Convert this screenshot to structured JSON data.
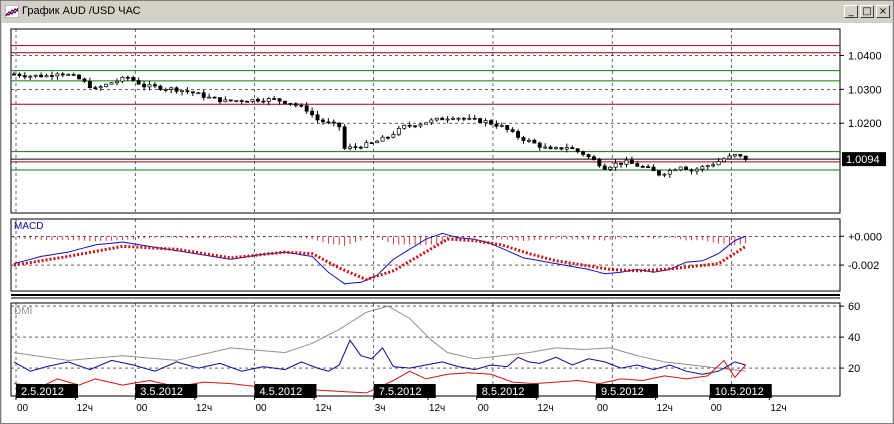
{
  "window": {
    "title": "График AUD /USD  ЧАС",
    "buttons": {
      "minimize": "_",
      "maximize": "□",
      "close": "×"
    }
  },
  "chart_data": [
    {
      "type": "candlestick",
      "panel": "price",
      "y_ticks": [
        "1.0400",
        "1.0300",
        "1.0200"
      ],
      "ylim": [
        0.9935,
        1.0478
      ],
      "current_price_label": "1.0094",
      "horizontal_levels": {
        "red": [
          1.0429,
          1.0408,
          1.0256,
          1.0086
        ],
        "green": [
          1.0355,
          1.0325,
          1.0116,
          1.0062
        ],
        "black": [
          1.0094
        ]
      },
      "close_path": [
        [
          0,
          1.0345
        ],
        [
          3,
          1.034
        ],
        [
          6,
          1.034
        ],
        [
          8,
          1.035
        ],
        [
          10,
          1.0342
        ],
        [
          12,
          1.033
        ],
        [
          15,
          1.03
        ],
        [
          18,
          1.032
        ],
        [
          21,
          1.0335
        ],
        [
          24,
          1.031
        ],
        [
          27,
          1.0305
        ],
        [
          30,
          1.03
        ],
        [
          33,
          1.029
        ],
        [
          36,
          1.0275
        ],
        [
          39,
          1.0265
        ],
        [
          42,
          1.0268
        ],
        [
          45,
          1.027
        ],
        [
          48,
          1.027
        ],
        [
          51,
          1.026
        ],
        [
          54,
          1.024
        ],
        [
          56,
          1.021
        ],
        [
          58,
          1.02
        ],
        [
          60,
          1.019
        ],
        [
          61,
          1.0125
        ],
        [
          63,
          1.013
        ],
        [
          66,
          1.014
        ],
        [
          69,
          1.016
        ],
        [
          72,
          1.019
        ],
        [
          75,
          1.02
        ],
        [
          78,
          1.021
        ],
        [
          81,
          1.022
        ],
        [
          84,
          1.021
        ],
        [
          87,
          1.0205
        ],
        [
          90,
          1.019
        ],
        [
          93,
          1.016
        ],
        [
          96,
          1.014
        ],
        [
          99,
          1.012
        ],
        [
          102,
          1.013
        ],
        [
          105,
          1.011
        ],
        [
          107,
          1.009
        ],
        [
          109,
          1.007
        ],
        [
          111,
          1.008
        ],
        [
          113,
          1.0085
        ],
        [
          115,
          1.0075
        ],
        [
          117,
          1.0065
        ],
        [
          119,
          1.005
        ],
        [
          121,
          1.006
        ],
        [
          123,
          1.0075
        ],
        [
          125,
          1.006
        ],
        [
          127,
          1.007
        ],
        [
          129,
          1.008
        ],
        [
          131,
          1.0095
        ],
        [
          133,
          1.0105
        ],
        [
          135,
          1.0095
        ]
      ]
    },
    {
      "type": "line",
      "panel": "MACD",
      "title": "MACD",
      "y_ticks": [
        "+0.000",
        "-0.002"
      ],
      "ylim": [
        -0.0038,
        0.0012
      ],
      "series": [
        {
          "color": "#1010c0",
          "points": [
            [
              0,
              -0.0019
            ],
            [
              5,
              -0.0014
            ],
            [
              10,
              -0.0011
            ],
            [
              15,
              -0.0006
            ],
            [
              20,
              -0.0004
            ],
            [
              25,
              -0.0007
            ],
            [
              30,
              -0.001
            ],
            [
              35,
              -0.0013
            ],
            [
              40,
              -0.0016
            ],
            [
              45,
              -0.0013
            ],
            [
              50,
              -0.0011
            ],
            [
              55,
              -0.0014
            ],
            [
              58,
              -0.0025
            ],
            [
              61,
              -0.0033
            ],
            [
              64,
              -0.0032
            ],
            [
              67,
              -0.0027
            ],
            [
              70,
              -0.0016
            ],
            [
              73,
              -0.0009
            ],
            [
              76,
              -0.0002
            ],
            [
              79,
              0.0002
            ],
            [
              82,
              -0.0001
            ],
            [
              85,
              -0.0002
            ],
            [
              88,
              -0.0005
            ],
            [
              91,
              -0.001
            ],
            [
              94,
              -0.0015
            ],
            [
              97,
              -0.0017
            ],
            [
              100,
              -0.0019
            ],
            [
              103,
              -0.0021
            ],
            [
              106,
              -0.0023
            ],
            [
              109,
              -0.0026
            ],
            [
              112,
              -0.0025
            ],
            [
              115,
              -0.0023
            ],
            [
              118,
              -0.0025
            ],
            [
              121,
              -0.0023
            ],
            [
              124,
              -0.0018
            ],
            [
              127,
              -0.0017
            ],
            [
              130,
              -0.0012
            ],
            [
              133,
              -0.0003
            ],
            [
              135,
              0.0
            ]
          ]
        },
        {
          "color": "#cc1010",
          "style": "dotted",
          "points": [
            [
              0,
              -0.002
            ],
            [
              10,
              -0.0014
            ],
            [
              20,
              -0.0007
            ],
            [
              30,
              -0.0009
            ],
            [
              40,
              -0.0015
            ],
            [
              50,
              -0.0011
            ],
            [
              55,
              -0.0012
            ],
            [
              60,
              -0.0022
            ],
            [
              65,
              -0.003
            ],
            [
              70,
              -0.0024
            ],
            [
              75,
              -0.0013
            ],
            [
              80,
              -0.0002
            ],
            [
              85,
              -0.0003
            ],
            [
              90,
              -0.0006
            ],
            [
              95,
              -0.0012
            ],
            [
              100,
              -0.0017
            ],
            [
              105,
              -0.002
            ],
            [
              110,
              -0.0023
            ],
            [
              115,
              -0.0024
            ],
            [
              120,
              -0.0023
            ],
            [
              125,
              -0.0021
            ],
            [
              130,
              -0.0019
            ],
            [
              135,
              -0.0007
            ]
          ]
        }
      ]
    },
    {
      "type": "line",
      "panel": "DMI",
      "title": "DMI",
      "y_ticks": [
        "60",
        "40",
        "20"
      ],
      "ylim": [
        2,
        62
      ],
      "series": [
        {
          "color": "#909090",
          "points": [
            [
              0,
              30
            ],
            [
              10,
              25
            ],
            [
              20,
              28
            ],
            [
              30,
              25
            ],
            [
              40,
              33
            ],
            [
              50,
              30
            ],
            [
              55,
              36
            ],
            [
              60,
              45
            ],
            [
              65,
              56
            ],
            [
              69,
              60
            ],
            [
              73,
              52
            ],
            [
              77,
              38
            ],
            [
              80,
              30
            ],
            [
              85,
              26
            ],
            [
              90,
              28
            ],
            [
              95,
              30
            ],
            [
              100,
              33
            ],
            [
              105,
              32
            ],
            [
              110,
              33
            ],
            [
              115,
              28
            ],
            [
              120,
              24
            ],
            [
              125,
              22
            ],
            [
              130,
              20
            ],
            [
              135,
              18
            ]
          ]
        },
        {
          "color": "#0a0a9a",
          "points": [
            [
              0,
              24
            ],
            [
              3,
              18
            ],
            [
              6,
              21
            ],
            [
              10,
              24
            ],
            [
              14,
              19
            ],
            [
              18,
              25
            ],
            [
              22,
              22
            ],
            [
              26,
              18
            ],
            [
              30,
              24
            ],
            [
              34,
              20
            ],
            [
              38,
              23
            ],
            [
              42,
              18
            ],
            [
              46,
              21
            ],
            [
              50,
              19
            ],
            [
              53,
              24
            ],
            [
              56,
              20
            ],
            [
              58,
              18
            ],
            [
              60,
              22
            ],
            [
              62,
              38
            ],
            [
              64,
              28
            ],
            [
              66,
              26
            ],
            [
              68,
              33
            ],
            [
              70,
              21
            ],
            [
              73,
              20
            ],
            [
              76,
              22
            ],
            [
              79,
              24
            ],
            [
              82,
              21
            ],
            [
              85,
              19
            ],
            [
              88,
              22
            ],
            [
              91,
              21
            ],
            [
              93,
              27
            ],
            [
              95,
              24
            ],
            [
              97,
              23
            ],
            [
              100,
              27
            ],
            [
              103,
              22
            ],
            [
              106,
              26
            ],
            [
              109,
              24
            ],
            [
              112,
              20
            ],
            [
              115,
              22
            ],
            [
              118,
              19
            ],
            [
              121,
              22
            ],
            [
              124,
              18
            ],
            [
              127,
              16
            ],
            [
              130,
              18
            ],
            [
              133,
              24
            ],
            [
              135,
              22
            ]
          ]
        },
        {
          "color": "#dd1010",
          "points": [
            [
              0,
              10
            ],
            [
              5,
              8
            ],
            [
              8,
              13
            ],
            [
              12,
              9
            ],
            [
              15,
              13
            ],
            [
              20,
              9
            ],
            [
              25,
              12
            ],
            [
              30,
              8
            ],
            [
              35,
              11
            ],
            [
              40,
              10
            ],
            [
              45,
              8
            ],
            [
              50,
              9
            ],
            [
              55,
              6
            ],
            [
              60,
              5
            ],
            [
              65,
              4
            ],
            [
              70,
              12
            ],
            [
              73,
              18
            ],
            [
              76,
              13
            ],
            [
              80,
              16
            ],
            [
              84,
              17
            ],
            [
              88,
              16
            ],
            [
              92,
              11
            ],
            [
              96,
              10
            ],
            [
              100,
              11
            ],
            [
              104,
              12
            ],
            [
              108,
              10
            ],
            [
              112,
              13
            ],
            [
              116,
              12
            ],
            [
              120,
              15
            ],
            [
              124,
              13
            ],
            [
              128,
              15
            ],
            [
              131,
              25
            ],
            [
              133,
              14
            ],
            [
              135,
              22
            ]
          ]
        }
      ]
    }
  ],
  "date_labels": [
    "2.5.2012",
    "3.5.2012",
    "4.5.2012",
    "7.5.2012",
    "8.5.2012",
    "9.5.2012",
    "10.5.2012"
  ],
  "hour_labels": [
    {
      "text": "00",
      "bar": 0
    },
    {
      "text": "12ч",
      "bar": 11
    },
    {
      "text": "00",
      "bar": 22
    },
    {
      "text": "12ч",
      "bar": 33
    },
    {
      "text": "00",
      "bar": 44
    },
    {
      "text": "12ч",
      "bar": 55
    },
    {
      "text": "3ч",
      "bar": 66
    },
    {
      "text": "12ч",
      "bar": 76
    },
    {
      "text": "00",
      "bar": 85
    },
    {
      "text": "12ч",
      "bar": 96
    },
    {
      "text": "00",
      "bar": 107
    },
    {
      "text": "12ч",
      "bar": 118
    },
    {
      "text": "00",
      "bar": 128
    },
    {
      "text": "12ч",
      "bar": 139
    }
  ],
  "date_label_bars": [
    0,
    22,
    44,
    66,
    85,
    107,
    128
  ],
  "colors": {
    "up": "#000000",
    "down": "#000000",
    "grid": "#000000",
    "text": "#000000"
  }
}
